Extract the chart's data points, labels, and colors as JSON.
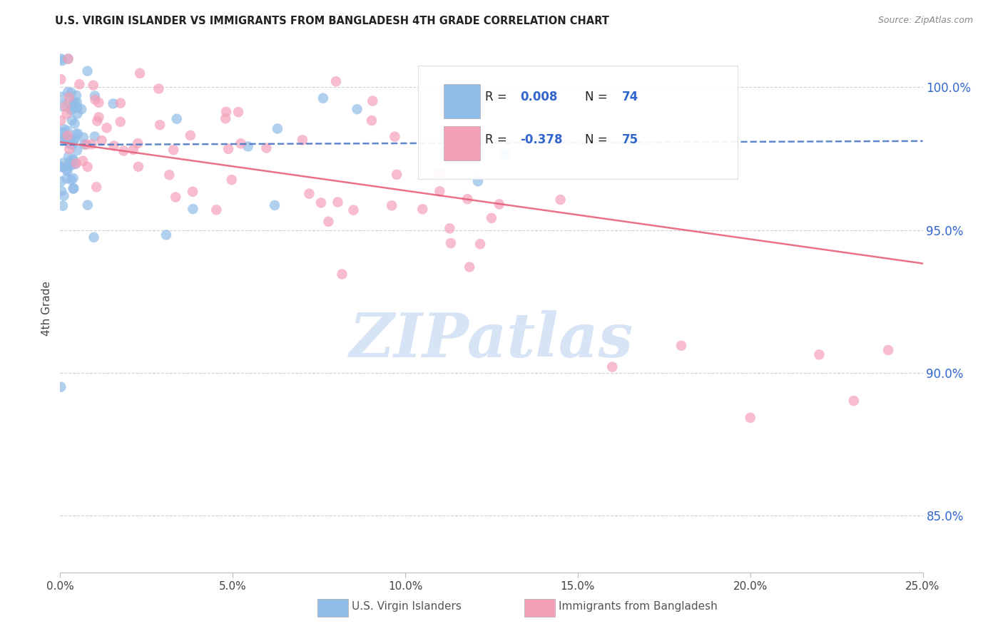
{
  "title": "U.S. VIRGIN ISLANDER VS IMMIGRANTS FROM BANGLADESH 4TH GRADE CORRELATION CHART",
  "source": "Source: ZipAtlas.com",
  "ylabel": "4th Grade",
  "xlim": [
    0.0,
    25.0
  ],
  "ylim": [
    83.0,
    101.5
  ],
  "yticks": [
    85.0,
    90.0,
    95.0,
    100.0
  ],
  "ytick_labels": [
    "85.0%",
    "90.0%",
    "95.0%",
    "100.0%"
  ],
  "xticks": [
    0,
    5,
    10,
    15,
    20,
    25
  ],
  "xtick_labels": [
    "0.0%",
    "5.0%",
    "10.0%",
    "15.0%",
    "20.0%",
    "25.0%"
  ],
  "series1_label": "U.S. Virgin Islanders",
  "series2_label": "Immigrants from Bangladesh",
  "R1": 0.008,
  "N1": 74,
  "R2": -0.378,
  "N2": 75,
  "color1": "#90bce8",
  "color2": "#f4a0b8",
  "trendline1_color": "#4472c4",
  "trendline2_color": "#e8607a",
  "background_color": "#ffffff",
  "watermark": "ZIPatlas",
  "watermark_color": "#d6e4f5",
  "grid_color": "#cccccc",
  "ytick_color": "#3366cc",
  "title_color": "#222222",
  "source_color": "#888888",
  "legend_text_color": "#222222",
  "legend_value_color": "#3366cc"
}
